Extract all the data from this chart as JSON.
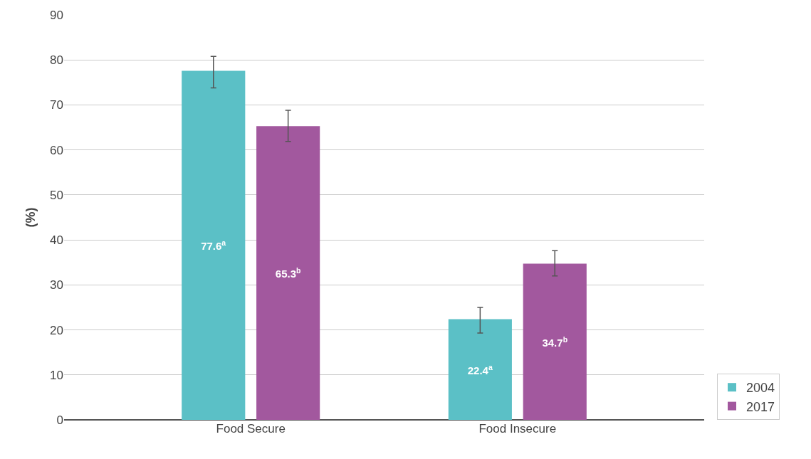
{
  "chart_data": {
    "type": "bar",
    "ylabel": "(%)",
    "categories": [
      "Food Secure",
      "Food Insecure"
    ],
    "series": [
      {
        "name": "2004",
        "color": "#5bc0c6",
        "values": [
          77.6,
          22.4
        ],
        "errors": [
          [
            73.8,
            80.8
          ],
          [
            19.3,
            25.0
          ]
        ],
        "value_labels": [
          "77.6$^{a}$",
          "22.4$^{a}$"
        ]
      },
      {
        "name": "2017",
        "color": "#a2589e",
        "values": [
          65.3,
          34.7
        ],
        "errors": [
          [
            61.9,
            68.8
          ],
          [
            32.0,
            37.6
          ]
        ],
        "value_labels": [
          "65.3$^{b}$",
          "34.7$^{b}$"
        ]
      }
    ],
    "ylim": [
      0,
      90
    ],
    "yticks": [
      0,
      10,
      20,
      30,
      40,
      50,
      60,
      70,
      80,
      90
    ],
    "grid": "y",
    "legend": "right"
  }
}
